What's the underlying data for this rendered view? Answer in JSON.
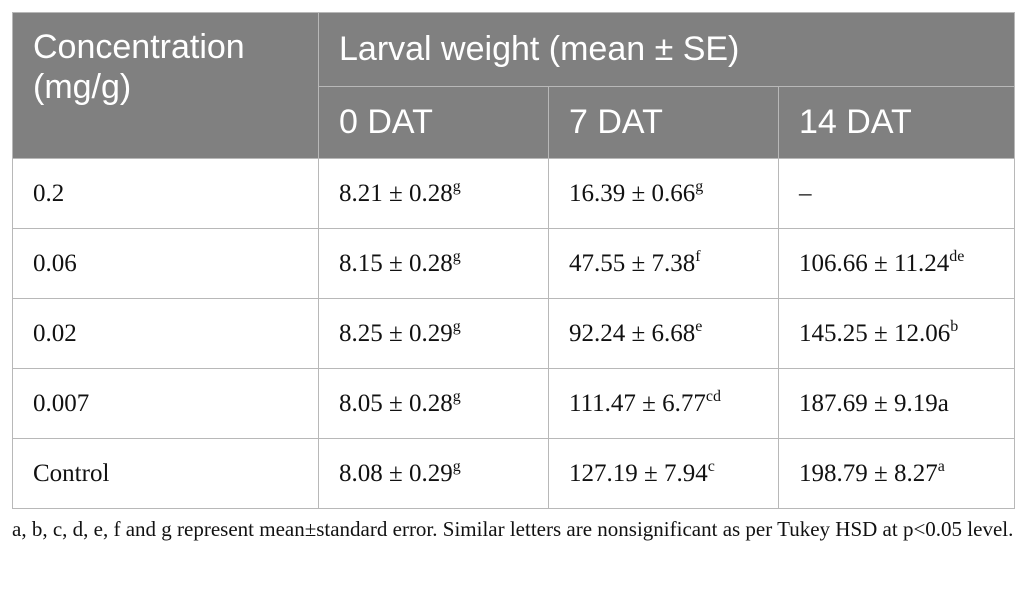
{
  "table": {
    "header": {
      "concentration": "Concentration (mg/g)",
      "group": "Larval weight (mean ± SE)",
      "columns": [
        "0 DAT",
        "7 DAT",
        "14 DAT"
      ]
    },
    "rows": [
      {
        "concentration": "0.2",
        "cells": [
          {
            "value": "8.21 ± 0.28",
            "sup": "g"
          },
          {
            "value": "16.39 ± 0.66",
            "sup": "g"
          },
          {
            "value": "–"
          }
        ]
      },
      {
        "concentration": "0.06",
        "cells": [
          {
            "value": "8.15 ± 0.28",
            "sup": "g"
          },
          {
            "value": "47.55 ± 7.38",
            "sup": "f"
          },
          {
            "value": "106.66 ± 11.24",
            "sup": "de"
          }
        ]
      },
      {
        "concentration": "0.02",
        "cells": [
          {
            "value": "8.25 ± 0.29",
            "sup": "g"
          },
          {
            "value": "92.24 ± 6.68",
            "sup": "e"
          },
          {
            "value": "145.25 ± 12.06",
            "sup": "b"
          }
        ]
      },
      {
        "concentration": "0.007",
        "cells": [
          {
            "value": "8.05 ± 0.28",
            "sup": "g"
          },
          {
            "value": "111.47 ± 6.77",
            "sup": "cd"
          },
          {
            "value": "187.69 ± 9.19a"
          }
        ]
      },
      {
        "concentration": "Control",
        "cells": [
          {
            "value": "8.08 ± 0.29",
            "sup": "g"
          },
          {
            "value": "127.19 ± 7.94",
            "sup": "c"
          },
          {
            "value": "198.79 ± 8.27",
            "sup": "a"
          }
        ]
      }
    ],
    "footnote": "a, b, c, d, e, f and g represent mean±standard error. Similar letters are nonsignificant as per Tukey HSD at p<0.05 level."
  }
}
